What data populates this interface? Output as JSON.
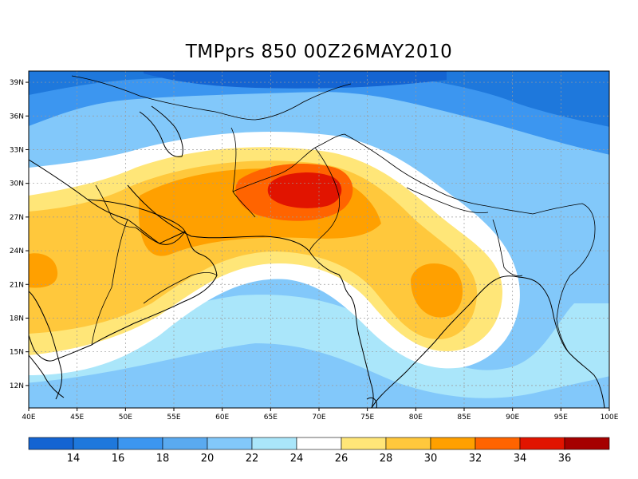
{
  "title": "TMPprs 850 00Z26MAY2010",
  "map": {
    "lon_range": [
      40,
      100
    ],
    "lat_range": [
      10,
      40
    ],
    "lon_ticks": [
      "40E",
      "45E",
      "50E",
      "55E",
      "60E",
      "65E",
      "70E",
      "75E",
      "80E",
      "85E",
      "90E",
      "95E",
      "100E"
    ],
    "lat_ticks": [
      "12N",
      "15N",
      "18N",
      "21N",
      "24N",
      "27N",
      "30N",
      "33N",
      "36N",
      "39N"
    ],
    "grid": true
  },
  "colorbar": {
    "colors": [
      "#1464d2",
      "#1e78dc",
      "#3c96f0",
      "#5aaaf0",
      "#82c8fa",
      "#aae6fa",
      "#ffffff",
      "#ffe678",
      "#ffc83c",
      "#ffa000",
      "#ff6400",
      "#e11400",
      "#a50000"
    ],
    "labels": [
      "14",
      "16",
      "18",
      "20",
      "22",
      "24",
      "26",
      "28",
      "30",
      "32",
      "34",
      "36"
    ]
  },
  "legend": {
    "levels": [
      12,
      14,
      16,
      18,
      20,
      22,
      24,
      26,
      28,
      30,
      32,
      34,
      36,
      38
    ]
  }
}
